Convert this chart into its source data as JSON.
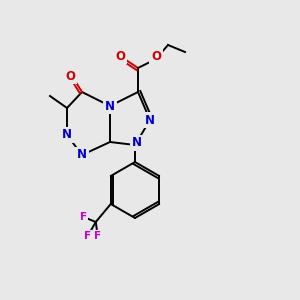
{
  "title": "",
  "background_color": "#e8e8e8",
  "atom_colors": {
    "C": "#000000",
    "N": "#0000cc",
    "O": "#cc0000",
    "F": "#cc00cc"
  },
  "bond_color": "#000000",
  "figsize": [
    3.0,
    3.0
  ],
  "dpi": 100
}
